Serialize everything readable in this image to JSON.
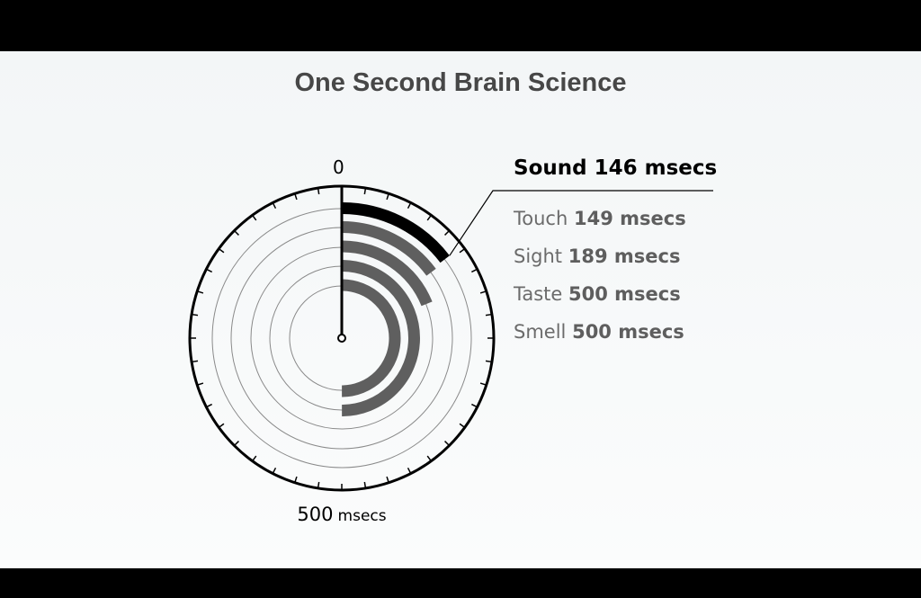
{
  "title": "One Second Brain Science",
  "colors": {
    "highlight": "#000000",
    "bar": "#5f5f5f",
    "ring": "#8a8a8a",
    "background": "#f5f7f8"
  },
  "chart_data": {
    "type": "radial-bar",
    "title": "One Second Brain Science",
    "full_circle_msecs": 1000,
    "tick_labels": {
      "top": "0",
      "bottom_value": "500",
      "bottom_unit": "msecs"
    },
    "series": [
      {
        "name": "Sound",
        "value": 146,
        "label": "Sound",
        "value_label": "146 msecs",
        "highlight": true
      },
      {
        "name": "Touch",
        "value": 149,
        "label": "Touch",
        "value_label": "149 msecs"
      },
      {
        "name": "Sight",
        "value": 189,
        "label": "Sight",
        "value_label": "189 msecs"
      },
      {
        "name": "Taste",
        "value": 500,
        "label": "Taste",
        "value_label": "500 msecs"
      },
      {
        "name": "Smell",
        "value": 500,
        "label": "Smell",
        "value_label": "500 msecs"
      }
    ]
  }
}
